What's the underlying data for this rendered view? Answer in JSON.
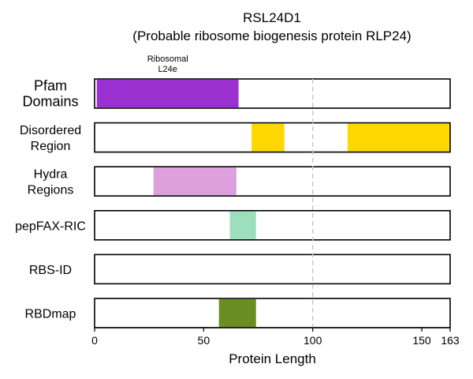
{
  "chart_data": {
    "type": "bar",
    "title_line1": "RSL24D1",
    "title_line2": "(Probable ribosome biogenesis protein RLP24)",
    "xlabel": "Protein Length",
    "xlim": [
      0,
      163
    ],
    "xticks": [
      0,
      50,
      100,
      150,
      163
    ],
    "reference_line": 100,
    "rows": [
      {
        "label_lines": [
          "Pfam",
          "Domains"
        ],
        "segments": [
          {
            "start": 1,
            "end": 66,
            "color": "#9b30d0"
          }
        ]
      },
      {
        "label_lines": [
          "Disordered",
          "Region"
        ],
        "segments": [
          {
            "start": 72,
            "end": 87,
            "color": "#ffd700"
          },
          {
            "start": 116,
            "end": 163,
            "color": "#ffd700"
          }
        ]
      },
      {
        "label_lines": [
          "Hydra",
          "Regions"
        ],
        "segments": [
          {
            "start": 27,
            "end": 65,
            "color": "#dda0dd"
          }
        ]
      },
      {
        "label_lines": [
          "pepFAX-RIC"
        ],
        "segments": [
          {
            "start": 62,
            "end": 74,
            "color": "#9ddfbc"
          }
        ]
      },
      {
        "label_lines": [
          "RBS-ID"
        ],
        "segments": []
      },
      {
        "label_lines": [
          "RBDmap"
        ],
        "segments": [
          {
            "start": 57,
            "end": 74,
            "color": "#6b8e23"
          }
        ]
      }
    ],
    "annotations": [
      {
        "row": 0,
        "x": 33.5,
        "lines": [
          "Ribosomal",
          "L24e"
        ]
      }
    ]
  }
}
